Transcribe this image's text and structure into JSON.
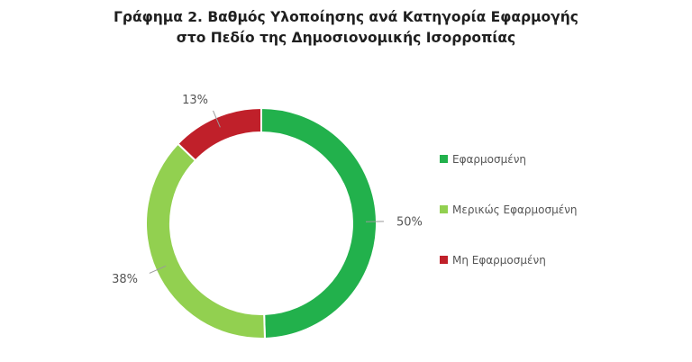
{
  "chart_data": {
    "type": "pie",
    "variant": "donut",
    "title": "Γράφημα 2. Βαθμός Υλοποίησης ανά Κατηγορία Εφαρμογής",
    "subtitle": "στο Πεδίο της Δημοσιονομικής Ισορροπίας",
    "categories": [
      "Εφαρμοσμένη",
      "Μερικώς Εφαρμοσμένη",
      "Μη Εφαρμοσμένη"
    ],
    "values": [
      50,
      38,
      13
    ],
    "data_labels": [
      "50%",
      "38%",
      "13%"
    ],
    "colors": [
      "#22b14c",
      "#92d050",
      "#c0202a"
    ],
    "legend_position": "right"
  }
}
